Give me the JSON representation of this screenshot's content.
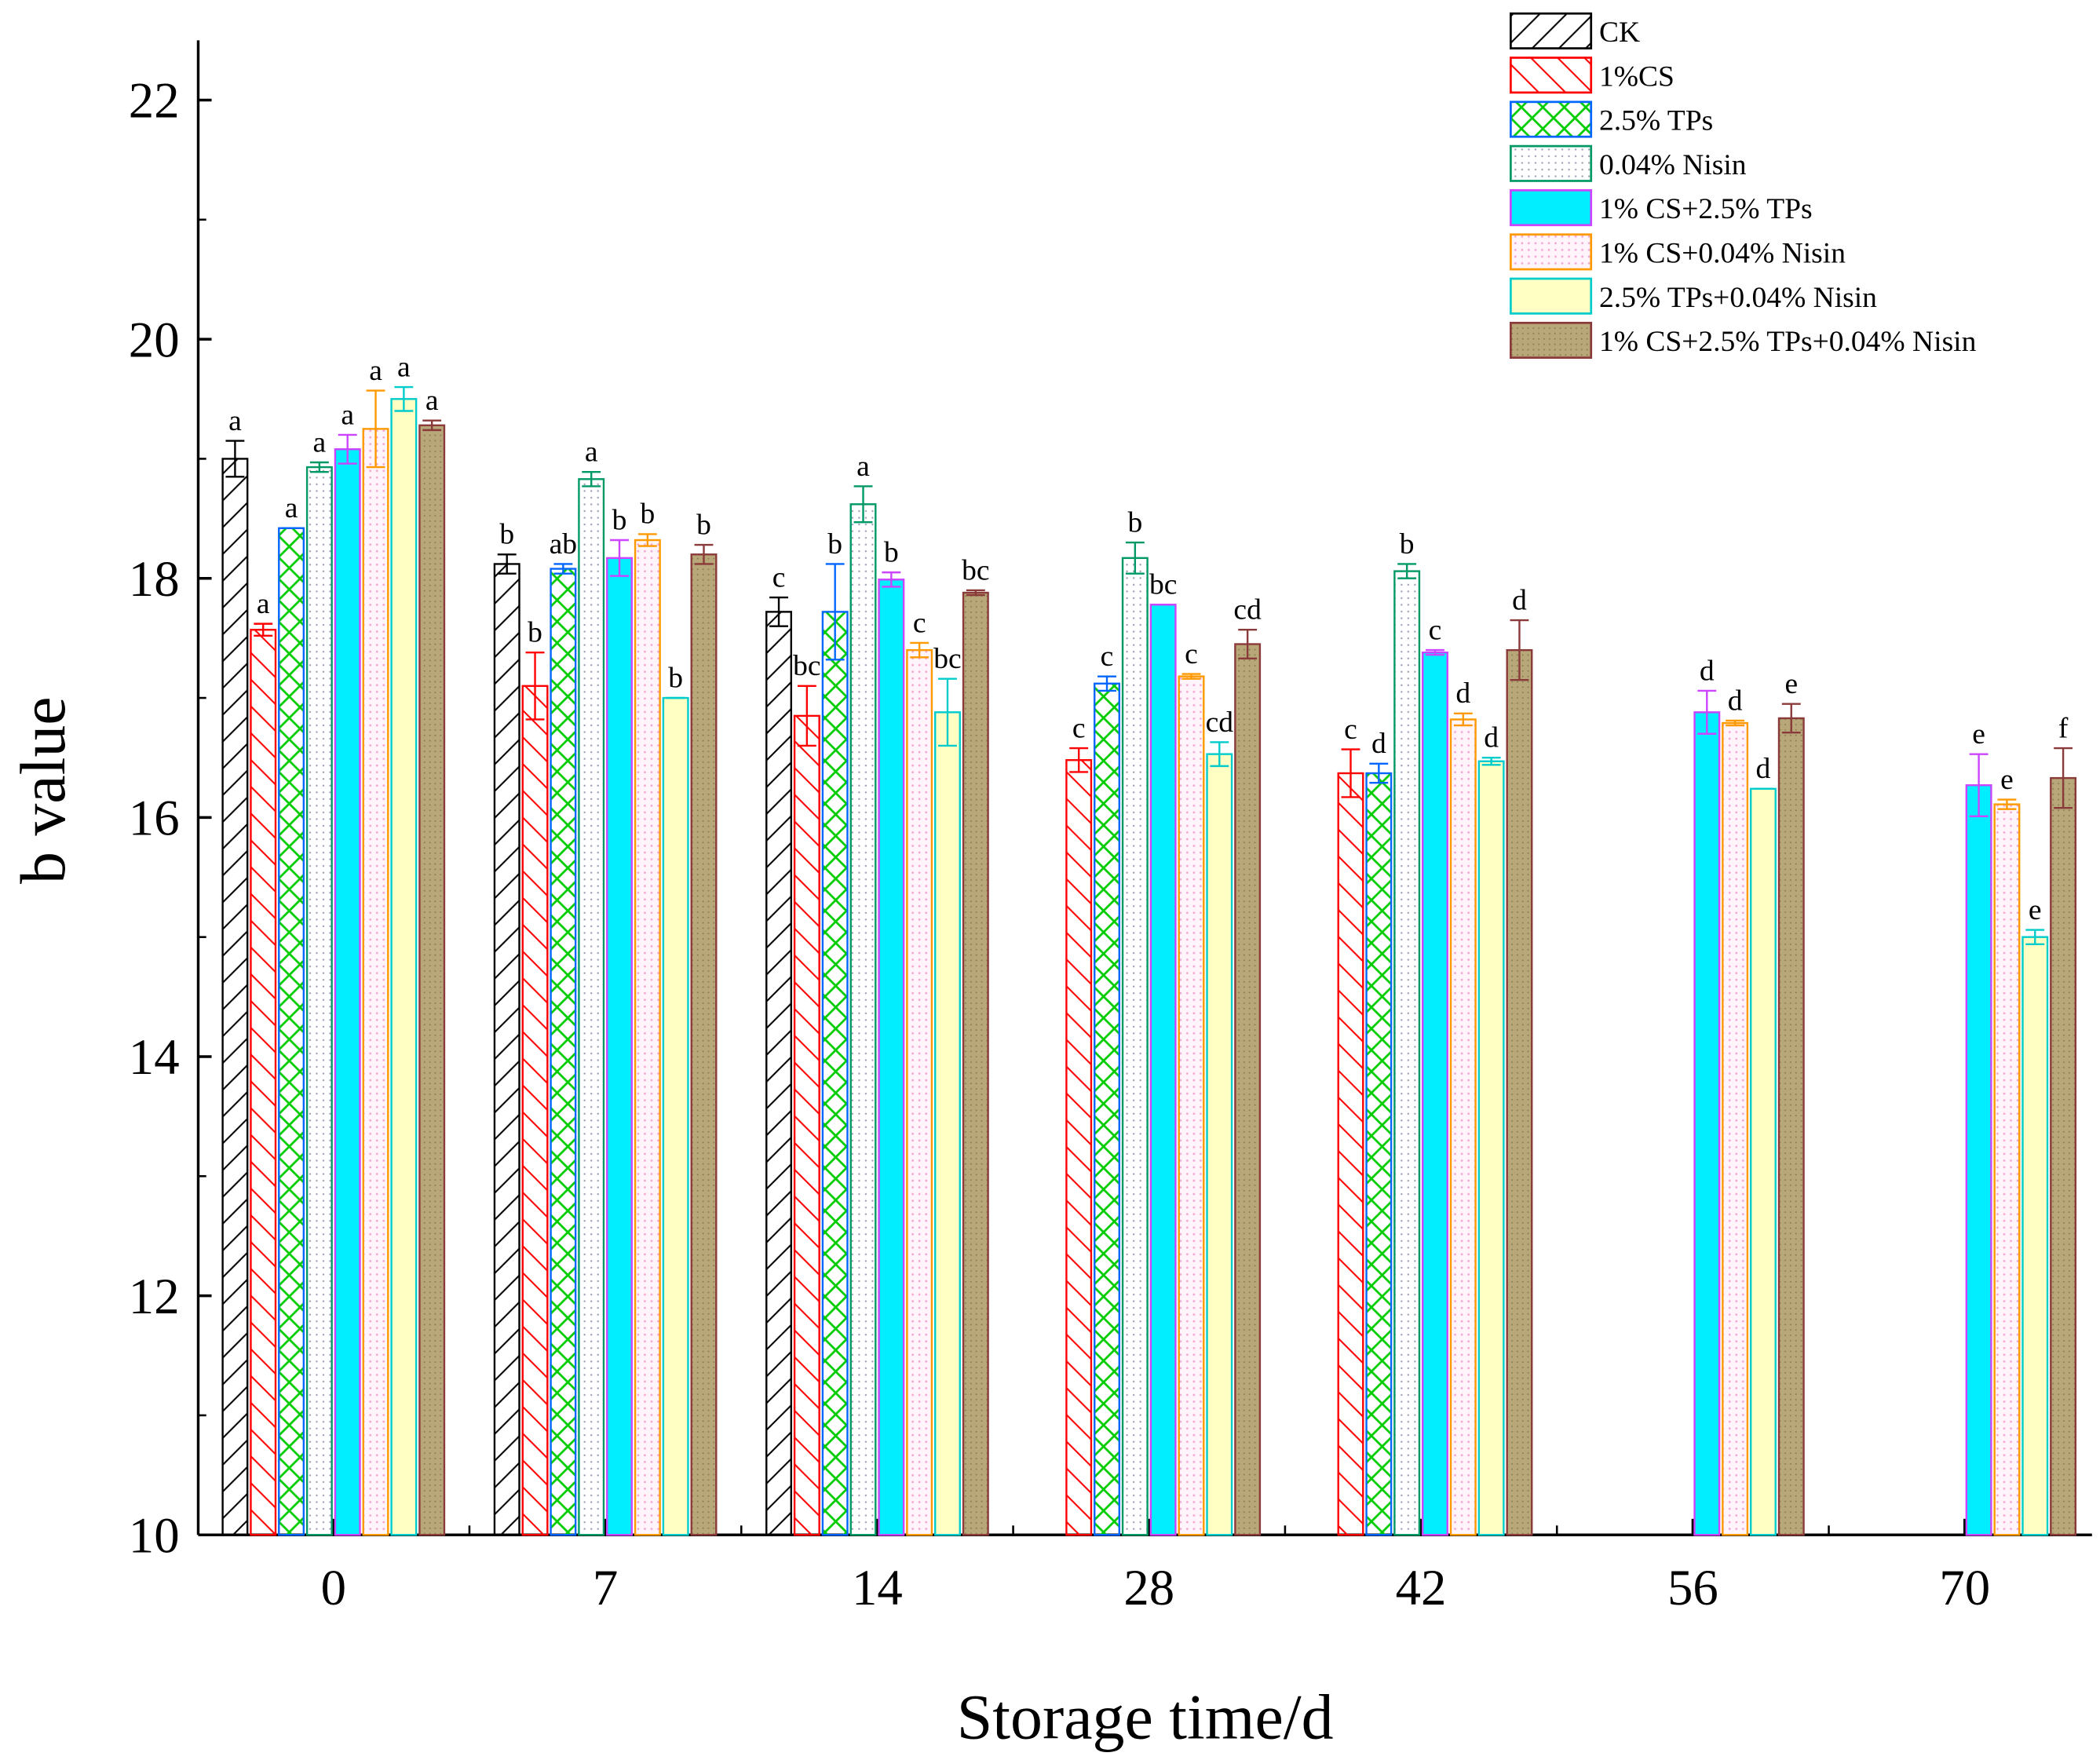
{
  "chart_data": {
    "type": "bar",
    "title": "",
    "xlabel": "Storage time/d",
    "ylabel": "b value",
    "ylim": [
      10,
      22.5
    ],
    "yticks": [
      10,
      12,
      14,
      16,
      18,
      20,
      22
    ],
    "categories": [
      "0",
      "7",
      "14",
      "28",
      "42",
      "56",
      "70"
    ],
    "legend_position": "top-right",
    "series": [
      {
        "name": "CK",
        "color": "#000000",
        "pattern": "diag-right",
        "values": [
          19.0,
          18.12,
          17.72,
          null,
          null,
          null,
          null
        ],
        "errors": [
          0.15,
          0.08,
          0.12,
          null,
          null,
          null,
          null
        ],
        "letters": [
          "a",
          "b",
          "c",
          "",
          "",
          "",
          ""
        ]
      },
      {
        "name": "1%CS",
        "color": "#ff0000",
        "pattern": "diag-left",
        "values": [
          17.57,
          17.1,
          16.85,
          16.48,
          16.37,
          null,
          null
        ],
        "errors": [
          0.05,
          0.28,
          0.25,
          0.1,
          0.2,
          null,
          null
        ],
        "letters": [
          "a",
          "b",
          "bc",
          "c",
          "c",
          "",
          ""
        ]
      },
      {
        "name": "2.5% TPs",
        "color": "#0066ff",
        "pattern": "cross",
        "values": [
          18.42,
          18.08,
          17.72,
          17.12,
          16.37,
          null,
          null
        ],
        "errors": [
          0.0,
          0.04,
          0.4,
          0.06,
          0.08,
          null,
          null
        ],
        "letters": [
          "a",
          "ab",
          "b",
          "c",
          "d",
          "",
          ""
        ]
      },
      {
        "name": "0.04% Nisin",
        "color": "#009966",
        "pattern": "dots",
        "values": [
          18.93,
          18.83,
          18.62,
          18.17,
          18.06,
          null,
          null
        ],
        "errors": [
          0.04,
          0.06,
          0.15,
          0.13,
          0.06,
          null,
          null
        ],
        "letters": [
          "a",
          "a",
          "a",
          "b",
          "b",
          "",
          ""
        ]
      },
      {
        "name": "1% CS+2.5% TPs",
        "color": "#cc44ff",
        "pattern": "solid-cyan",
        "values": [
          19.08,
          18.17,
          17.99,
          17.78,
          17.38,
          16.88,
          16.27
        ],
        "errors": [
          0.12,
          0.15,
          0.06,
          0.0,
          0.02,
          0.18,
          0.26
        ],
        "letters": [
          "a",
          "b",
          "b",
          "bc",
          "c",
          "d",
          "e"
        ]
      },
      {
        "name": "1% CS+0.04% Nisin",
        "color": "#ff9900",
        "pattern": "dots-pink",
        "values": [
          19.25,
          18.32,
          17.4,
          17.18,
          16.82,
          16.79,
          16.11
        ],
        "errors": [
          0.32,
          0.05,
          0.06,
          0.02,
          0.05,
          0.02,
          0.04
        ],
        "letters": [
          "a",
          "b",
          "c",
          "c",
          "d",
          "d",
          "e"
        ]
      },
      {
        "name": "2.5% TPs+0.04% Nisin",
        "color": "#00cccc",
        "pattern": "solid-yellow",
        "values": [
          19.5,
          17.0,
          16.88,
          16.53,
          16.47,
          16.24,
          15.0
        ],
        "errors": [
          0.1,
          0.0,
          0.28,
          0.1,
          0.03,
          0.0,
          0.06
        ],
        "letters": [
          "a",
          "b",
          "bc",
          "cd",
          "d",
          "d",
          "e"
        ]
      },
      {
        "name": "1% CS+2.5% TPs+0.04% Nisin",
        "color": "#8b3a3a",
        "pattern": "olive",
        "values": [
          19.28,
          18.2,
          17.88,
          17.45,
          17.4,
          16.83,
          16.33
        ],
        "errors": [
          0.04,
          0.08,
          0.02,
          0.12,
          0.25,
          0.12,
          0.25
        ],
        "letters": [
          "a",
          "b",
          "bc",
          "cd",
          "d",
          "e",
          "f"
        ]
      }
    ]
  }
}
